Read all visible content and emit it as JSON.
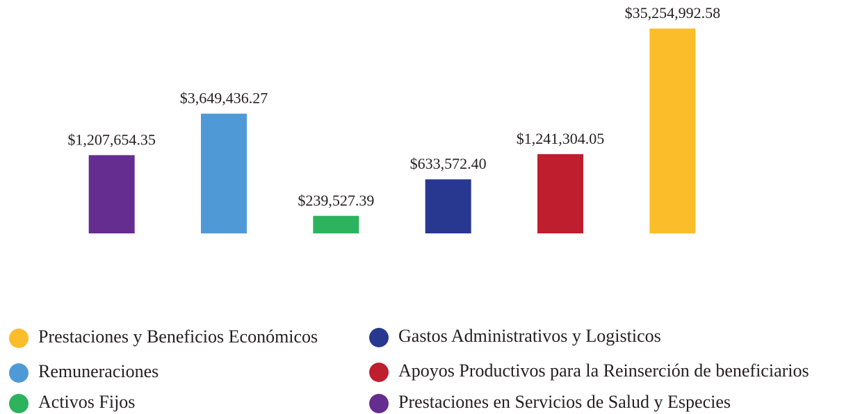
{
  "chart_data": {
    "type": "bar",
    "categories": [
      "Prestaciones en Servicios de Salud y Especies",
      "Remuneraciones",
      "Activos Fijos",
      "Gastos Administrativos y Logisticos",
      "Apoyos Productivos para la Reinserción de beneficiarios",
      "Prestaciones y Beneficios Económicos"
    ],
    "values": [
      1207654.35,
      3649436.27,
      239527.39,
      633572.4,
      1241304.05,
      35254992.58
    ],
    "value_labels": [
      "$1,207,654.35",
      "$3,649,436.27",
      "$239,527.39",
      "$633,572.40",
      "$1,241,304.05",
      "$35,254,992.58"
    ],
    "colors": [
      "#662d91",
      "#4f9ad6",
      "#2db35d",
      "#283891",
      "#be1e2d",
      "#fbbd29"
    ],
    "log_scale": true,
    "ylim": [
      150000,
      36000000
    ],
    "legend_position": "bottom",
    "legend_order": [
      5,
      1,
      2,
      3,
      4,
      0
    ]
  }
}
